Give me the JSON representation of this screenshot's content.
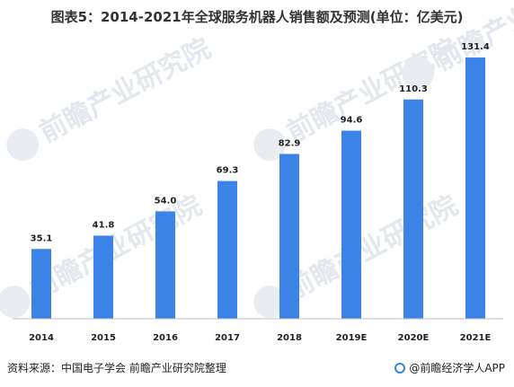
{
  "title": "图表5：2014-2021年全球服务机器人销售额及预测(单位：亿美元)",
  "chart_data": {
    "type": "bar",
    "categories": [
      "2014",
      "2015",
      "2016",
      "2017",
      "2018",
      "2019E",
      "2020E",
      "2021E"
    ],
    "values": [
      35.1,
      41.8,
      54.0,
      69.3,
      82.9,
      94.6,
      110.3,
      131.4
    ],
    "value_labels": [
      "35.1",
      "41.8",
      "54.0",
      "69.3",
      "82.9",
      "94.6",
      "110.3",
      "131.4"
    ],
    "ylim": [
      0,
      140
    ],
    "grid": false,
    "bar_color": "#3b83e6"
  },
  "watermark": "前瞻产业研究院",
  "source": "资料来源：中国电子学会 前瞻产业研究院整理",
  "brand": "@前瞻经济学人APP"
}
